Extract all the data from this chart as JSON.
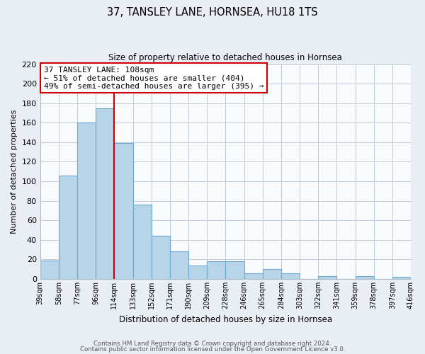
{
  "title": "37, TANSLEY LANE, HORNSEA, HU18 1TS",
  "subtitle": "Size of property relative to detached houses in Hornsea",
  "xlabel": "Distribution of detached houses by size in Hornsea",
  "ylabel": "Number of detached properties",
  "bar_values": [
    19,
    106,
    160,
    175,
    139,
    76,
    44,
    28,
    14,
    18,
    18,
    6,
    10,
    6,
    0,
    3,
    0,
    3,
    0,
    2
  ],
  "categories": [
    "39sqm",
    "58sqm",
    "77sqm",
    "96sqm",
    "114sqm",
    "133sqm",
    "152sqm",
    "171sqm",
    "190sqm",
    "209sqm",
    "228sqm",
    "246sqm",
    "265sqm",
    "284sqm",
    "303sqm",
    "322sqm",
    "341sqm",
    "359sqm",
    "378sqm",
    "397sqm",
    "416sqm"
  ],
  "bar_color": "#b8d4e8",
  "bar_edge_color": "#6aaad4",
  "vline_x": 4,
  "vline_color": "#cc0000",
  "annotation_title": "37 TANSLEY LANE: 108sqm",
  "annotation_line1": "← 51% of detached houses are smaller (404)",
  "annotation_line2": "49% of semi-detached houses are larger (395) →",
  "annotation_box_color": "#ffffff",
  "annotation_box_edge": "#cc0000",
  "ylim": [
    0,
    220
  ],
  "yticks": [
    0,
    20,
    40,
    60,
    80,
    100,
    120,
    140,
    160,
    180,
    200,
    220
  ],
  "footer1": "Contains HM Land Registry data © Crown copyright and database right 2024.",
  "footer2": "Contains public sector information licensed under the Open Government Licence v3.0.",
  "bg_color": "#e8eef4",
  "plot_bg_color": "#f8fafc",
  "grid_color": "#c0ccd8"
}
